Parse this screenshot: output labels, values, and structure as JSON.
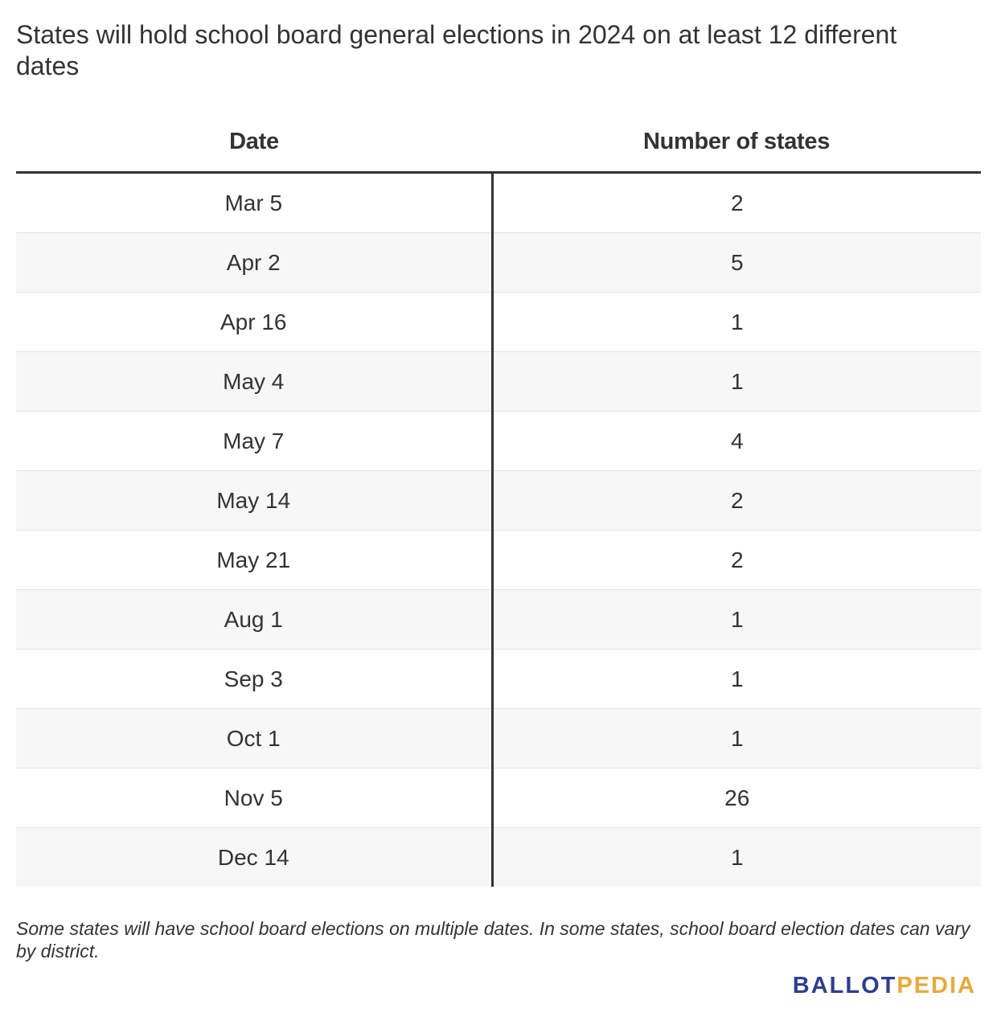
{
  "title": "States will hold school board general elections in 2024 on at least 12 different dates",
  "table": {
    "headers": [
      "Date",
      "Number of states"
    ],
    "rows": [
      [
        "Mar 5",
        "2"
      ],
      [
        "Apr 2",
        "5"
      ],
      [
        "Apr 16",
        "1"
      ],
      [
        "May 4",
        "1"
      ],
      [
        "May 7",
        "4"
      ],
      [
        "May 14",
        "2"
      ],
      [
        "May 21",
        "2"
      ],
      [
        "Aug 1",
        "1"
      ],
      [
        "Sep 3",
        "1"
      ],
      [
        "Oct 1",
        "1"
      ],
      [
        "Nov 5",
        "26"
      ],
      [
        "Dec 14",
        "1"
      ]
    ]
  },
  "chart_data": {
    "type": "table",
    "title": "States will hold school board general elections in 2024 on at least 12 different dates",
    "columns": [
      "Date",
      "Number of states"
    ],
    "categories": [
      "Mar 5",
      "Apr 2",
      "Apr 16",
      "May 4",
      "May 7",
      "May 14",
      "May 21",
      "Aug 1",
      "Sep 3",
      "Oct 1",
      "Nov 5",
      "Dec 14"
    ],
    "values": [
      2,
      5,
      1,
      1,
      4,
      2,
      2,
      1,
      1,
      1,
      26,
      1
    ]
  },
  "note": "Some states will have school board elections on multiple dates. In some states, school board election dates can vary by district.",
  "logo": {
    "part1": "BALLOT",
    "part2": "PEDIA"
  },
  "colors": {
    "logo_blue": "#2e3f8f",
    "logo_gold": "#e8a93a",
    "row_stripe": "#f7f7f7",
    "rule": "#333333"
  }
}
